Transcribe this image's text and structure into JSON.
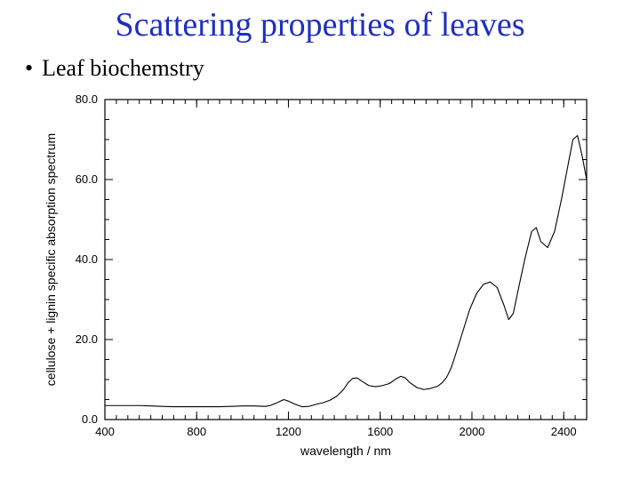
{
  "title": {
    "text": "Scattering properties of leaves",
    "color": "#1f2fbf",
    "font_size": 38
  },
  "bullet": {
    "marker": "•",
    "text": "Leaf biochemstry",
    "font_size": 26,
    "color": "#000000"
  },
  "chart": {
    "type": "line",
    "xlabel": "wavelength / nm",
    "ylabel": "cellulose + lignin specific absorption spectrum",
    "label_fontsize": 14,
    "tick_fontsize": 13,
    "xlim": [
      400,
      2500
    ],
    "ylim": [
      0,
      80
    ],
    "xticks": [
      400,
      800,
      1200,
      1600,
      2000,
      2400
    ],
    "yticks": [
      0,
      20,
      40,
      60,
      80
    ],
    "ytick_labels": [
      "0.0",
      "20.0",
      "40.0",
      "60.0",
      "80.0"
    ],
    "x_minor_step": 50,
    "y_minor_step": 5,
    "line_color": "#000000",
    "line_width": 1.1,
    "frame_color": "#000000",
    "background_color": "#ffffff",
    "series": {
      "x": [
        400,
        450,
        500,
        550,
        600,
        650,
        700,
        750,
        800,
        850,
        900,
        950,
        1000,
        1050,
        1100,
        1120,
        1150,
        1180,
        1200,
        1230,
        1260,
        1290,
        1320,
        1350,
        1380,
        1410,
        1440,
        1460,
        1480,
        1500,
        1520,
        1550,
        1580,
        1610,
        1640,
        1670,
        1690,
        1710,
        1730,
        1760,
        1790,
        1820,
        1850,
        1870,
        1890,
        1910,
        1930,
        1960,
        1990,
        2020,
        2050,
        2080,
        2110,
        2140,
        2160,
        2180,
        2200,
        2230,
        2260,
        2280,
        2300,
        2330,
        2360,
        2390,
        2420,
        2440,
        2460,
        2480,
        2500
      ],
      "y": [
        3.5,
        3.5,
        3.5,
        3.5,
        3.4,
        3.3,
        3.2,
        3.2,
        3.2,
        3.2,
        3.2,
        3.3,
        3.4,
        3.4,
        3.3,
        3.5,
        4.2,
        5.0,
        4.6,
        3.8,
        3.2,
        3.3,
        3.8,
        4.2,
        4.8,
        5.8,
        7.5,
        9.2,
        10.3,
        10.4,
        9.6,
        8.5,
        8.2,
        8.5,
        9.0,
        10.2,
        10.8,
        10.4,
        9.2,
        8.0,
        7.5,
        7.8,
        8.3,
        9.2,
        10.6,
        13.0,
        16.5,
        22.0,
        27.5,
        31.5,
        33.8,
        34.4,
        33.0,
        28.5,
        25.0,
        26.5,
        32.0,
        40.0,
        47.0,
        48.0,
        44.5,
        43.0,
        47.0,
        55.0,
        64.0,
        70.0,
        71.0,
        66.0,
        60.0
      ]
    }
  }
}
